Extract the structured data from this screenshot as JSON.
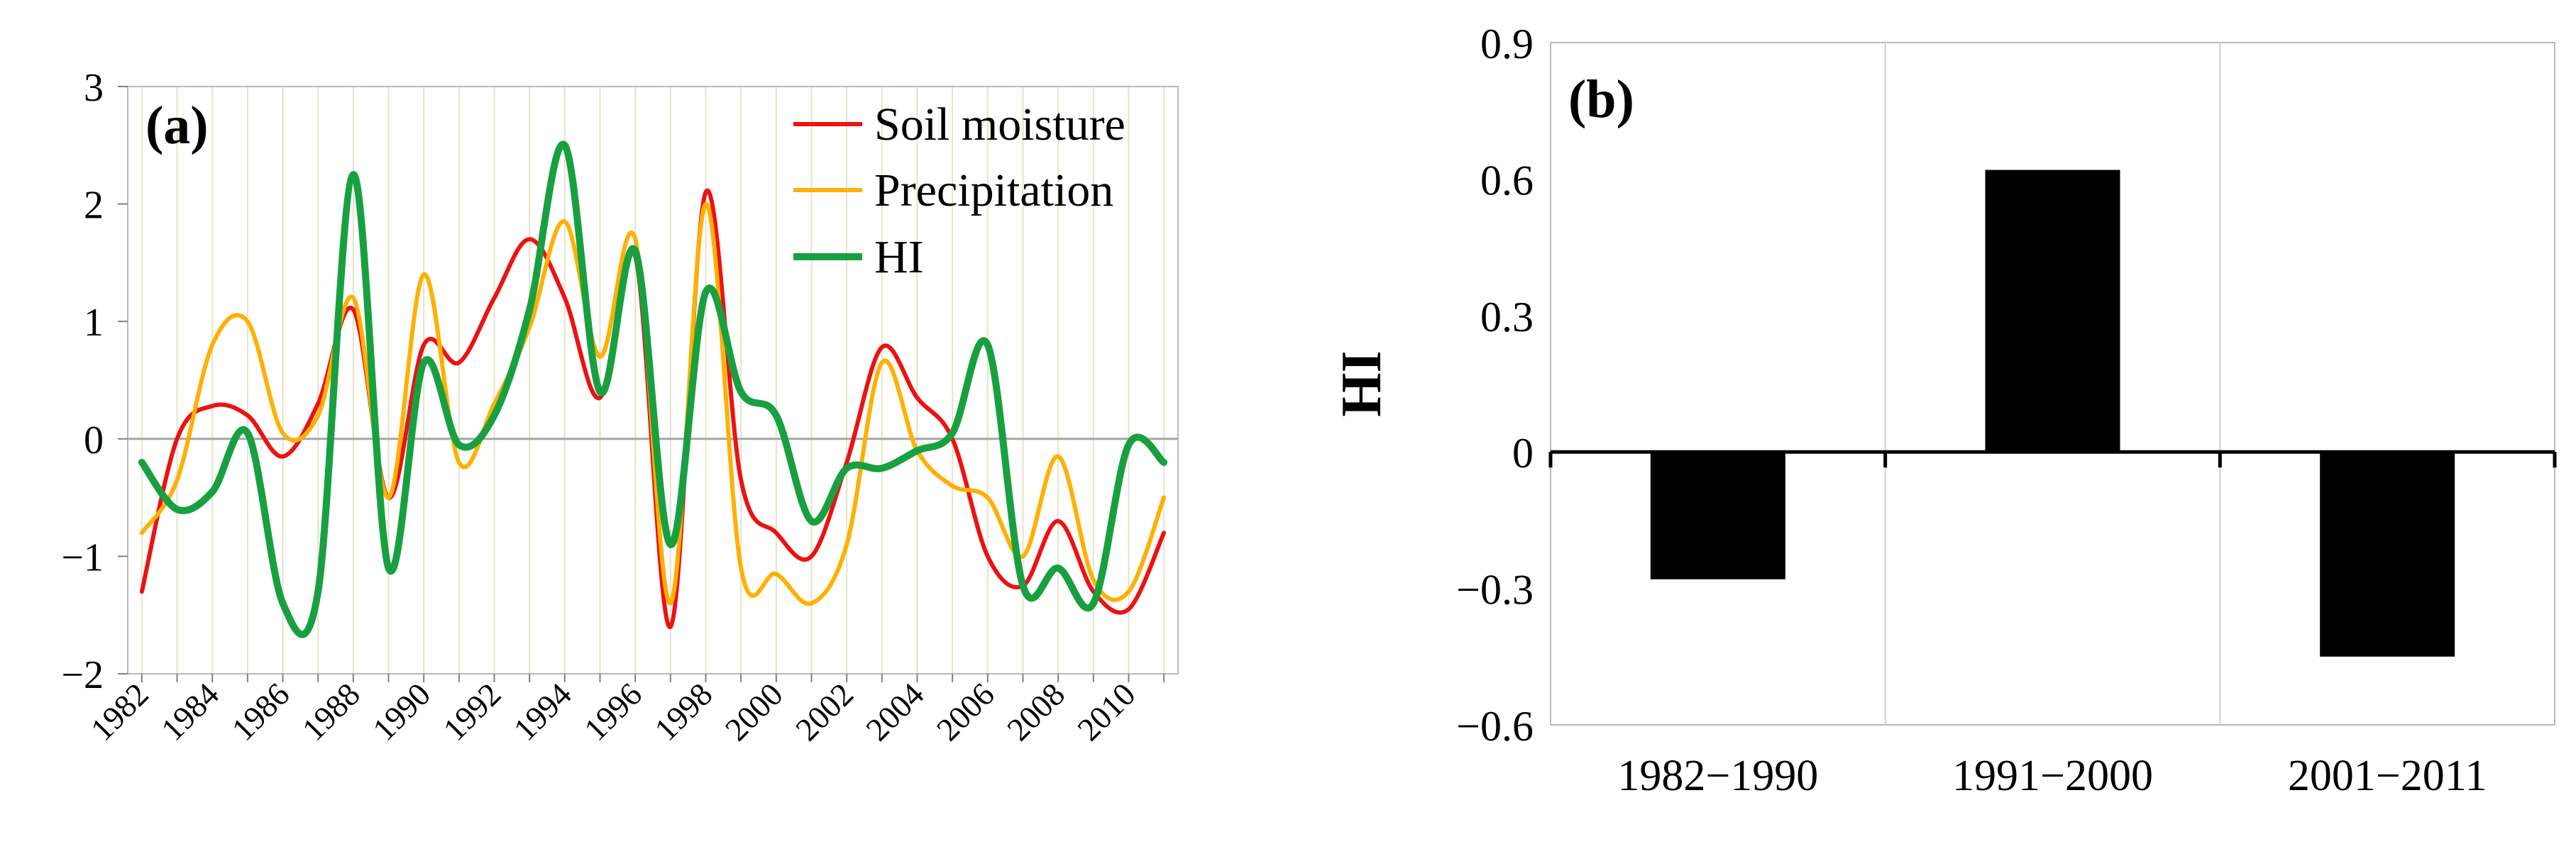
{
  "chart_data": [
    {
      "panel": "(a)",
      "type": "line",
      "title": "",
      "xlabel": "",
      "ylabel": "",
      "xlim": [
        1982,
        2011
      ],
      "ylim": [
        -2,
        3
      ],
      "yticks": [
        -2,
        -1,
        0,
        1,
        2,
        3
      ],
      "ytick_labels": [
        "−2",
        "−1",
        "0",
        "1",
        "2",
        "3"
      ],
      "xticks": [
        1982,
        1984,
        1986,
        1988,
        1990,
        1992,
        1994,
        1996,
        1998,
        2000,
        2002,
        2004,
        2006,
        2008,
        2010
      ],
      "xtick_labels": [
        "1982",
        "1984",
        "1986",
        "1988",
        "1990",
        "1992",
        "1994",
        "1996",
        "1998",
        "2000",
        "2002",
        "2004",
        "2006",
        "2008",
        "2010"
      ],
      "grid": "vertical",
      "legend_position": "top-right",
      "x": [
        1982,
        1983,
        1984,
        1985,
        1986,
        1987,
        1988,
        1989,
        1990,
        1991,
        1992,
        1993,
        1994,
        1995,
        1996,
        1997,
        1998,
        1999,
        2000,
        2001,
        2002,
        2003,
        2004,
        2005,
        2006,
        2007,
        2008,
        2009,
        2010,
        2011
      ],
      "series": [
        {
          "name": "Soil moisture",
          "color": "#ee1111",
          "values": [
            -1.3,
            0.0,
            0.28,
            0.2,
            -0.15,
            0.3,
            1.1,
            -0.5,
            0.8,
            0.65,
            1.2,
            1.7,
            1.2,
            0.35,
            1.55,
            -1.6,
            2.1,
            -0.35,
            -0.8,
            -1.0,
            -0.2,
            0.78,
            0.35,
            0.0,
            -1.0,
            -1.25,
            -0.7,
            -1.3,
            -1.45,
            -0.8
          ]
        },
        {
          "name": "Precipitation",
          "color": "#ffb000",
          "values": [
            -0.8,
            -0.35,
            0.8,
            1.0,
            0.05,
            0.2,
            1.2,
            -0.5,
            1.4,
            -0.2,
            0.3,
            0.95,
            1.85,
            0.7,
            1.7,
            -1.4,
            2.0,
            -1.1,
            -1.15,
            -1.4,
            -0.9,
            0.65,
            -0.1,
            -0.4,
            -0.5,
            -1.0,
            -0.15,
            -1.2,
            -1.3,
            -0.5
          ]
        },
        {
          "name": "HI",
          "color": "#18a040",
          "values": [
            -0.2,
            -0.6,
            -0.45,
            0.05,
            -1.4,
            -1.3,
            2.25,
            -1.1,
            0.65,
            -0.05,
            0.2,
            1.1,
            2.5,
            0.4,
            1.6,
            -0.9,
            1.25,
            0.4,
            0.2,
            -0.7,
            -0.25,
            -0.25,
            -0.1,
            0.05,
            0.8,
            -1.25,
            -1.1,
            -1.4,
            -0.05,
            -0.2
          ]
        }
      ]
    },
    {
      "panel": "(b)",
      "type": "bar",
      "title": "",
      "xlabel": "",
      "ylabel": "HI",
      "ylim": [
        -0.6,
        0.9
      ],
      "yticks": [
        -0.6,
        -0.3,
        0,
        0.3,
        0.6,
        0.9
      ],
      "ytick_labels": [
        "−0.6",
        "−0.3",
        "0",
        "0.3",
        "0.6",
        "0.9"
      ],
      "grid": "vertical",
      "categories": [
        "1982−1990",
        "1991−2000",
        "2001−2011"
      ],
      "values": [
        -0.28,
        0.62,
        -0.45
      ],
      "bar_color": "#000000"
    }
  ]
}
